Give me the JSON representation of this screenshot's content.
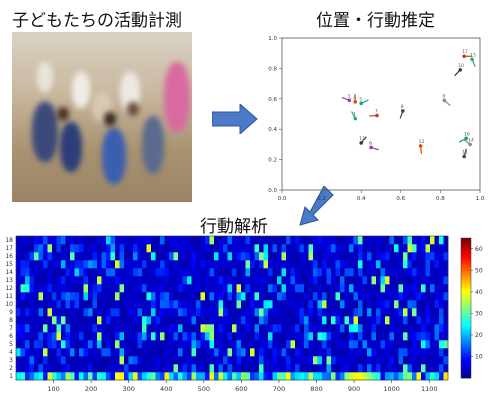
{
  "titles": {
    "measurement": "子どもたちの活動計測",
    "estimation": "位置・行動推定",
    "analysis": "行動解析"
  },
  "colors": {
    "arrow": "#4a7ac8",
    "arrow_edge": "#2f5597"
  },
  "scatter_axes": {
    "x_ticks": [
      "0.0",
      "0.2",
      "0.4",
      "0.6",
      "0.8",
      "1.0"
    ],
    "y_ticks": [
      "0.0",
      "0.2",
      "0.4",
      "0.6",
      "0.8",
      "1.0"
    ]
  },
  "chart_data": [
    {
      "type": "scatter",
      "xlim": [
        0,
        1
      ],
      "ylim": [
        0,
        1
      ],
      "grid": false,
      "points": [
        {
          "x": 0.92,
          "y": 0.88,
          "label": "17"
        },
        {
          "x": 0.96,
          "y": 0.86,
          "label": "15"
        },
        {
          "x": 0.9,
          "y": 0.79,
          "label": "10"
        },
        {
          "x": 0.34,
          "y": 0.59,
          "label": "3"
        },
        {
          "x": 0.37,
          "y": 0.58,
          "label": "4"
        },
        {
          "x": 0.4,
          "y": 0.57,
          "label": "5"
        },
        {
          "x": 0.82,
          "y": 0.59,
          "label": "9"
        },
        {
          "x": 0.61,
          "y": 0.52,
          "label": "8"
        },
        {
          "x": 0.48,
          "y": 0.49,
          "label": "7"
        },
        {
          "x": 0.37,
          "y": 0.47,
          "label": "1"
        },
        {
          "x": 0.4,
          "y": 0.31,
          "label": "13"
        },
        {
          "x": 0.45,
          "y": 0.28,
          "label": "6"
        },
        {
          "x": 0.7,
          "y": 0.29,
          "label": "12"
        },
        {
          "x": 0.93,
          "y": 0.34,
          "label": "16"
        },
        {
          "x": 0.95,
          "y": 0.3,
          "label": "14"
        },
        {
          "x": 0.92,
          "y": 0.22,
          "label": "11"
        }
      ]
    },
    {
      "type": "heatmap",
      "x_ticks": [
        100,
        200,
        300,
        400,
        500,
        600,
        700,
        800,
        900,
        1000,
        1100
      ],
      "x_range": [
        0,
        1150
      ],
      "y_ticks": [
        1,
        2,
        3,
        4,
        5,
        6,
        7,
        8,
        9,
        10,
        11,
        12,
        13,
        14,
        15,
        16,
        17,
        18
      ],
      "colorbar_ticks": [
        10,
        20,
        30,
        40,
        50,
        60
      ],
      "colorbar_range": [
        0,
        65
      ],
      "colormap": "jet",
      "colormap_stops": [
        "#00008f",
        "#0000ff",
        "#0080ff",
        "#00ffff",
        "#80ff80",
        "#ffff00",
        "#ff8000",
        "#ff0000",
        "#800000"
      ]
    }
  ]
}
